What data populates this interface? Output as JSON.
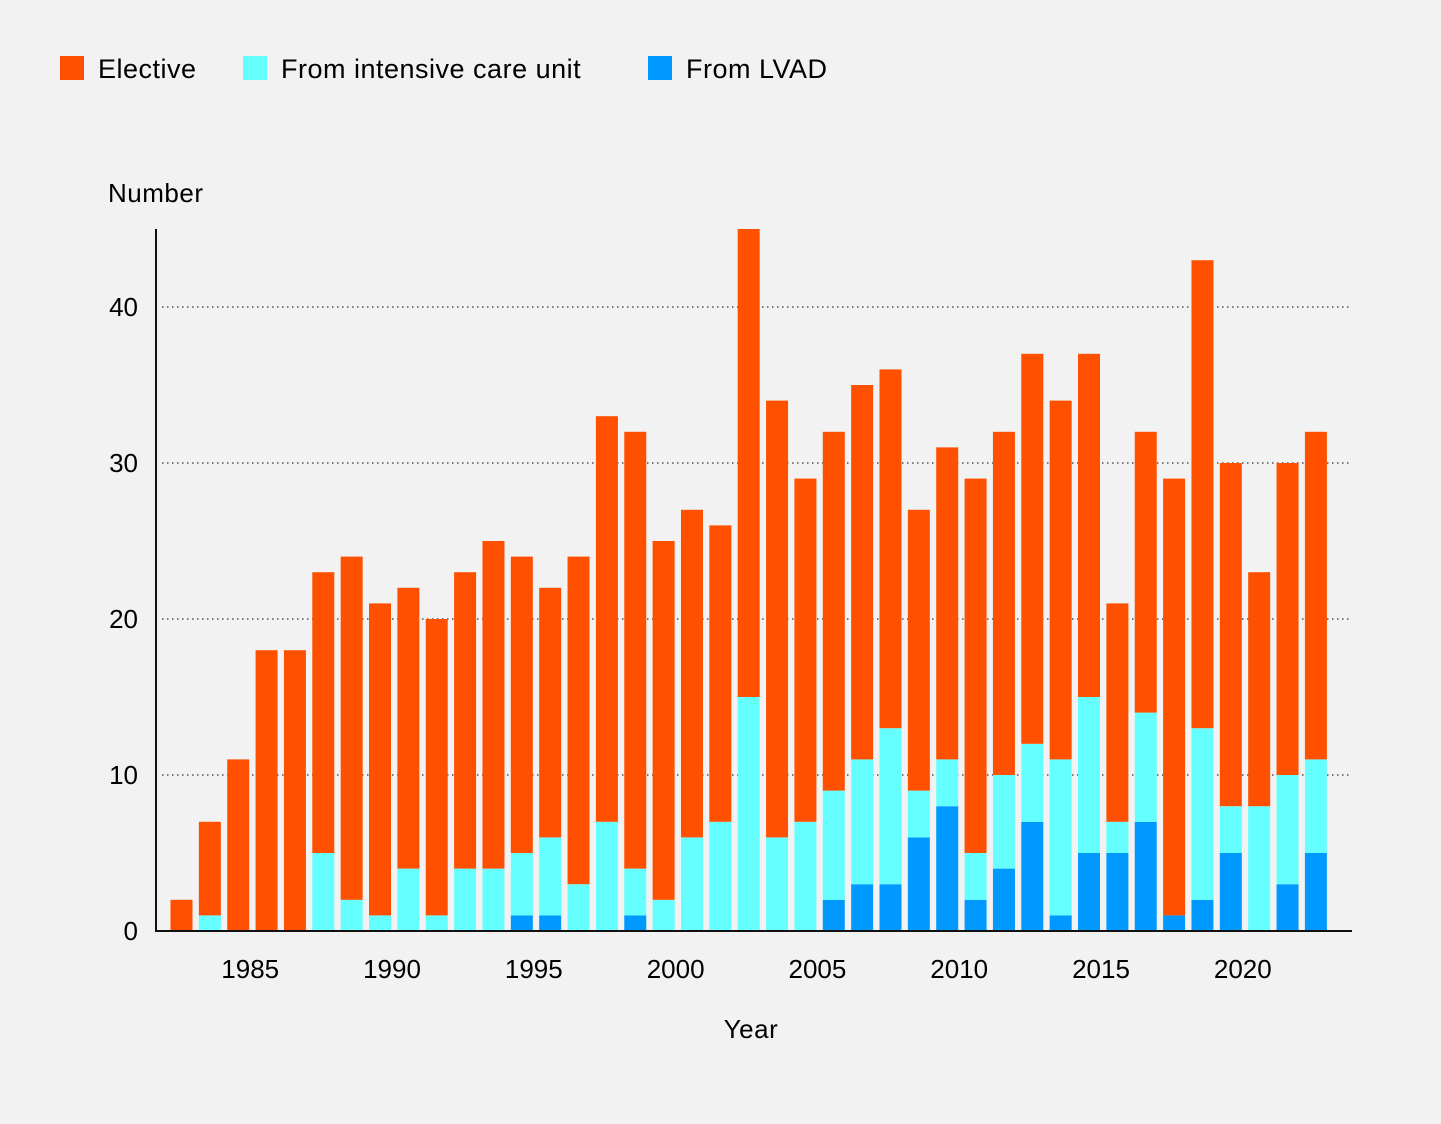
{
  "chart_data": {
    "type": "bar",
    "stacked": true,
    "ylabel": "Number",
    "xlabel": "Year",
    "ylim": [
      0,
      45
    ],
    "yticks": [
      0,
      10,
      20,
      30,
      40
    ],
    "xticks": [
      1985,
      1990,
      1995,
      2000,
      2005,
      2010,
      2015,
      2020
    ],
    "grid": "horizontal dotted",
    "legend_position": "top-left",
    "categories": [
      1983,
      1984,
      1985,
      1986,
      1987,
      1988,
      1989,
      1990,
      1991,
      1992,
      1993,
      1994,
      1995,
      1996,
      1997,
      1998,
      1999,
      2000,
      2001,
      2002,
      2003,
      2004,
      2005,
      2006,
      2007,
      2008,
      2009,
      2010,
      2011,
      2012,
      2013,
      2014,
      2015,
      2016,
      2017,
      2018,
      2019,
      2020,
      2021,
      2022,
      2023
    ],
    "series": [
      {
        "name": "From LVAD",
        "color": "#0099ff",
        "values": [
          0,
          0,
          0,
          0,
          0,
          0,
          0,
          0,
          0,
          0,
          0,
          0,
          1,
          1,
          0,
          0,
          1,
          0,
          0,
          0,
          0,
          0,
          0,
          2,
          3,
          3,
          6,
          8,
          2,
          4,
          7,
          1,
          5,
          5,
          7,
          1,
          2,
          5,
          0,
          3,
          5
        ]
      },
      {
        "name": "From intensive care unit",
        "color": "#66ffff",
        "values": [
          0,
          1,
          0,
          0,
          0,
          5,
          2,
          1,
          4,
          1,
          4,
          4,
          4,
          5,
          3,
          7,
          3,
          2,
          6,
          7,
          15,
          6,
          7,
          7,
          8,
          10,
          3,
          3,
          3,
          6,
          5,
          10,
          10,
          2,
          7,
          0,
          11,
          3,
          8,
          7,
          6
        ]
      },
      {
        "name": "Elective",
        "color": "#ff5000",
        "values": [
          2,
          6,
          11,
          18,
          18,
          18,
          22,
          20,
          18,
          19,
          19,
          21,
          19,
          16,
          21,
          26,
          28,
          23,
          21,
          19,
          30,
          28,
          22,
          23,
          24,
          23,
          18,
          20,
          24,
          22,
          25,
          23,
          22,
          14,
          18,
          28,
          30,
          22,
          15,
          20,
          21
        ]
      }
    ]
  },
  "legend": [
    {
      "label": "Elective",
      "color": "#ff5000"
    },
    {
      "label": "From intensive care unit",
      "color": "#66ffff"
    },
    {
      "label": "From LVAD",
      "color": "#0099ff"
    }
  ]
}
